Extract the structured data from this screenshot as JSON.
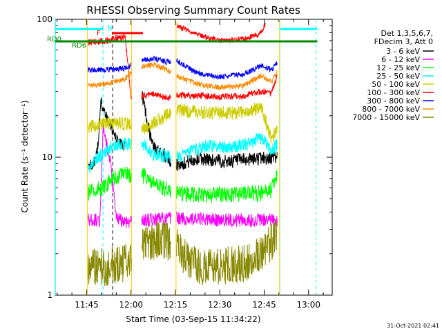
{
  "chart_data": {
    "type": "line",
    "title": "RHESSI Observing Summary Count Rates",
    "xlabel": "Start Time (03-Sep-15 11:34:22)",
    "ylabel": "Count Rate (s⁻¹ detector⁻¹)",
    "y_scale": "log",
    "ylim": [
      1,
      100
    ],
    "xlim": [
      "11:34:22",
      "13:08:00"
    ],
    "x_ticks": [
      "11:45",
      "12:00",
      "12:15",
      "12:30",
      "12:45",
      "13:00"
    ],
    "x_tick_minutes": [
      705,
      720,
      735,
      750,
      765,
      780
    ],
    "y_ticks": [
      "1",
      "10",
      "100"
    ],
    "legend": {
      "placement": "right",
      "header": [
        "Det 1,3,5,6,7,",
        "FDecim 3, Att 0"
      ]
    },
    "series": [
      {
        "name": "3 - 6 keV",
        "color": "#000000",
        "x": [
          723.5,
          727,
          732,
          735.5,
          743,
          752,
          760,
          764.5,
          766.5,
          769.5
        ],
        "y": [
          30,
          12.5,
          10,
          8.8,
          9.8,
          9.3,
          9.6,
          9.9,
          9.7,
          10.2
        ],
        "early_x": [
          705.5,
          707,
          708,
          709,
          709.8,
          710.5,
          711.5,
          713,
          714.5,
          716.5,
          718
        ],
        "early_y": [
          8.8,
          8.8,
          9.5,
          13,
          27,
          22,
          20,
          17,
          14,
          12.5,
          12
        ]
      },
      {
        "name": "6 - 12 keV",
        "color": "#ff00ff",
        "x": [
          705.5,
          709.5,
          710.5,
          713,
          715,
          718,
          724,
          735,
          750,
          764,
          767.5,
          769.5
        ],
        "y": [
          3.5,
          3.5,
          16,
          9,
          3.6,
          3.4,
          3.5,
          3.6,
          3.5,
          3.5,
          3.5,
          3.4
        ]
      },
      {
        "name": "12 - 25 keV",
        "color": "#00ff00",
        "x": [
          705.5,
          710,
          715,
          718,
          723.5,
          727,
          735.5,
          745,
          755,
          764,
          767.5,
          769.5
        ],
        "y": [
          5.5,
          6,
          7.2,
          7.5,
          7.5,
          6.5,
          5.5,
          5.3,
          5.4,
          5.5,
          5.8,
          7.5
        ]
      },
      {
        "name": "25 - 50 keV",
        "color": "#00ffff",
        "x": [
          705.5,
          708,
          711,
          715,
          718,
          723.5,
          727,
          735.5,
          745,
          755,
          760,
          764,
          767.5,
          769.5
        ],
        "y": [
          8,
          9.5,
          11,
          12.5,
          12.5,
          13,
          10.5,
          10,
          12,
          12,
          12.5,
          14,
          11,
          12.5
        ]
      },
      {
        "name": "50 - 100 keV",
        "color": "#cccc00",
        "x": [
          705.5,
          710,
          715,
          718,
          723.5,
          735.5,
          745,
          755,
          760,
          764,
          767.5,
          769.5
        ],
        "y": [
          16.5,
          17.5,
          17.5,
          17.5,
          16,
          22,
          21,
          21,
          21.5,
          23,
          13.5,
          16
        ]
      },
      {
        "name": "100 - 300 keV",
        "color": "#ff0000",
        "x": [
          705.5,
          712,
          718,
          720,
          724,
          728,
          732,
          735.5,
          742,
          750,
          758,
          764,
          767.5,
          769.5
        ],
        "y": [
          68,
          70,
          75,
          27,
          28,
          28.5,
          27,
          28,
          28,
          27.5,
          28,
          30,
          29,
          40
        ],
        "upper_x": [
          735.5,
          742,
          750,
          758,
          763.5,
          765.5
        ],
        "upper_y": [
          90,
          78,
          70,
          72,
          78,
          92
        ]
      },
      {
        "name": "300 - 800 keV",
        "color": "#0000ff",
        "x": [
          705.5,
          712,
          718,
          722,
          728,
          732,
          735.5,
          742,
          750,
          758,
          764,
          767.5,
          769.5
        ],
        "y": [
          43,
          43,
          44,
          50,
          52,
          49,
          50,
          41,
          38,
          40,
          46,
          43,
          49
        ]
      },
      {
        "name": "800 - 7000 keV",
        "color": "#ff8800",
        "x": [
          705.5,
          712,
          718,
          722,
          728,
          732,
          735.5,
          742,
          750,
          758,
          764,
          767.5,
          769.5
        ],
        "y": [
          33,
          34,
          37,
          45,
          47,
          43,
          39,
          34,
          32,
          33,
          39,
          35,
          42
        ]
      },
      {
        "name": "7000 - 15000 keV",
        "color": "#888800",
        "x": [
          705.5,
          712,
          718,
          724,
          730,
          735.5,
          742,
          750,
          758,
          764,
          767.5,
          769.5
        ],
        "y": [
          1.6,
          1.6,
          1.7,
          2.3,
          2.6,
          2.2,
          1.6,
          1.6,
          1.7,
          2.0,
          2.4,
          2.7
        ]
      }
    ],
    "annotations": [
      {
        "text": "N",
        "color": "#00ffff"
      },
      {
        "text": "F",
        "color": "#ff0000"
      },
      {
        "text": "RD0",
        "color": "#008800"
      },
      {
        "text": "RD6",
        "color": "#008800"
      }
    ],
    "flag_bars": {
      "N": [
        [
          694.4,
          710.5
        ],
        [
          770.5,
          783
        ]
      ],
      "F": [
        [
          713.5,
          724
        ]
      ],
      "RD": [
        [
          694.4,
          783
        ]
      ]
    },
    "vertical_markers": [
      {
        "minute": 694.4,
        "color": "#00ffff",
        "style": "solid"
      },
      {
        "minute": 710.5,
        "color": "#00ffff",
        "style": "dashed"
      },
      {
        "minute": 770.3,
        "color": "#00ffff",
        "style": "solid"
      },
      {
        "minute": 782.5,
        "color": "#00ffff",
        "style": "dashed"
      },
      {
        "minute": 705.2,
        "color": "#ffcc00",
        "style": "solid"
      },
      {
        "minute": 720.2,
        "color": "#ffcc00",
        "style": "solid"
      },
      {
        "minute": 735.2,
        "color": "#ffcc00",
        "style": "solid"
      },
      {
        "minute": 770.2,
        "color": "#ffcc00",
        "style": "solid"
      },
      {
        "minute": 713.8,
        "color": "#000000",
        "style": "dashed"
      }
    ]
  },
  "footer": {
    "timestamp": "31-Oct-2021 02:41"
  }
}
